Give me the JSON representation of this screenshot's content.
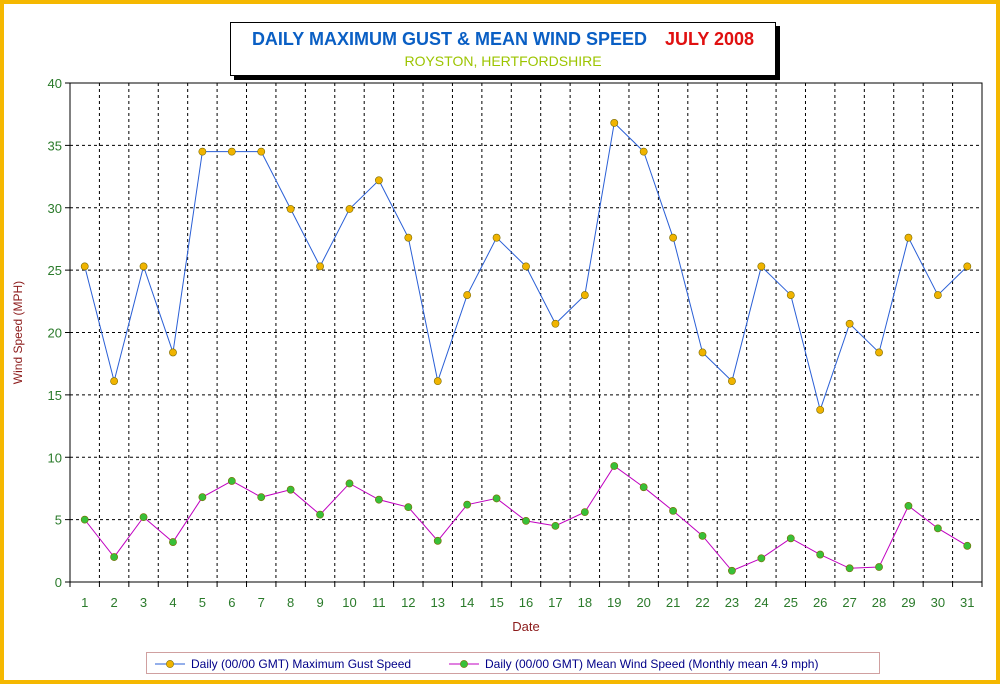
{
  "title": {
    "text": "DAILY MAXIMUM GUST & MEAN WIND SPEED",
    "period": "JULY 2008",
    "subtitle": "ROYSTON, HERTFORDSHIRE"
  },
  "colors": {
    "frame": "#f5b800",
    "title": "#0a5fc4",
    "period": "#e01010",
    "subtitle": "#9cc400",
    "axis_labels": "#8b1a1a",
    "tick_labels": "#2a7a2a",
    "gust_line": "#2a5fd6",
    "gust_marker": "#f0b400",
    "mean_line": "#c000c0",
    "mean_marker": "#38c038"
  },
  "chart_data": {
    "type": "line",
    "xlabel": "Date",
    "ylabel": "Wind Speed (MPH)",
    "ylim": [
      0,
      40
    ],
    "yticks": [
      0,
      5,
      10,
      15,
      20,
      25,
      30,
      35,
      40
    ],
    "grid": true,
    "legend_position": "bottom",
    "categories": [
      "1",
      "2",
      "3",
      "4",
      "5",
      "6",
      "7",
      "8",
      "9",
      "10",
      "11",
      "12",
      "13",
      "14",
      "15",
      "16",
      "17",
      "18",
      "19",
      "20",
      "21",
      "22",
      "23",
      "24",
      "25",
      "26",
      "27",
      "28",
      "29",
      "30",
      "31"
    ],
    "series": [
      {
        "name": "Daily (00/00 GMT) Maximum Gust Speed",
        "values": [
          25.3,
          16.1,
          25.3,
          18.4,
          34.5,
          34.5,
          34.5,
          29.9,
          25.3,
          29.9,
          32.2,
          27.6,
          16.1,
          23.0,
          27.6,
          25.3,
          20.7,
          23.0,
          36.8,
          34.5,
          27.6,
          18.4,
          16.1,
          25.3,
          23.0,
          13.8,
          20.7,
          18.4,
          27.6,
          23.0,
          25.3
        ]
      },
      {
        "name": "Daily (00/00 GMT) Mean Wind Speed (Monthly mean 4.9 mph)",
        "values": [
          5.0,
          2.0,
          5.2,
          3.2,
          6.8,
          8.1,
          6.8,
          7.4,
          5.4,
          7.9,
          6.6,
          6.0,
          3.3,
          6.2,
          6.7,
          4.9,
          4.5,
          5.6,
          9.3,
          7.6,
          5.7,
          3.7,
          0.9,
          1.9,
          3.5,
          2.2,
          1.1,
          1.2,
          6.1,
          4.3,
          2.9
        ]
      }
    ]
  }
}
